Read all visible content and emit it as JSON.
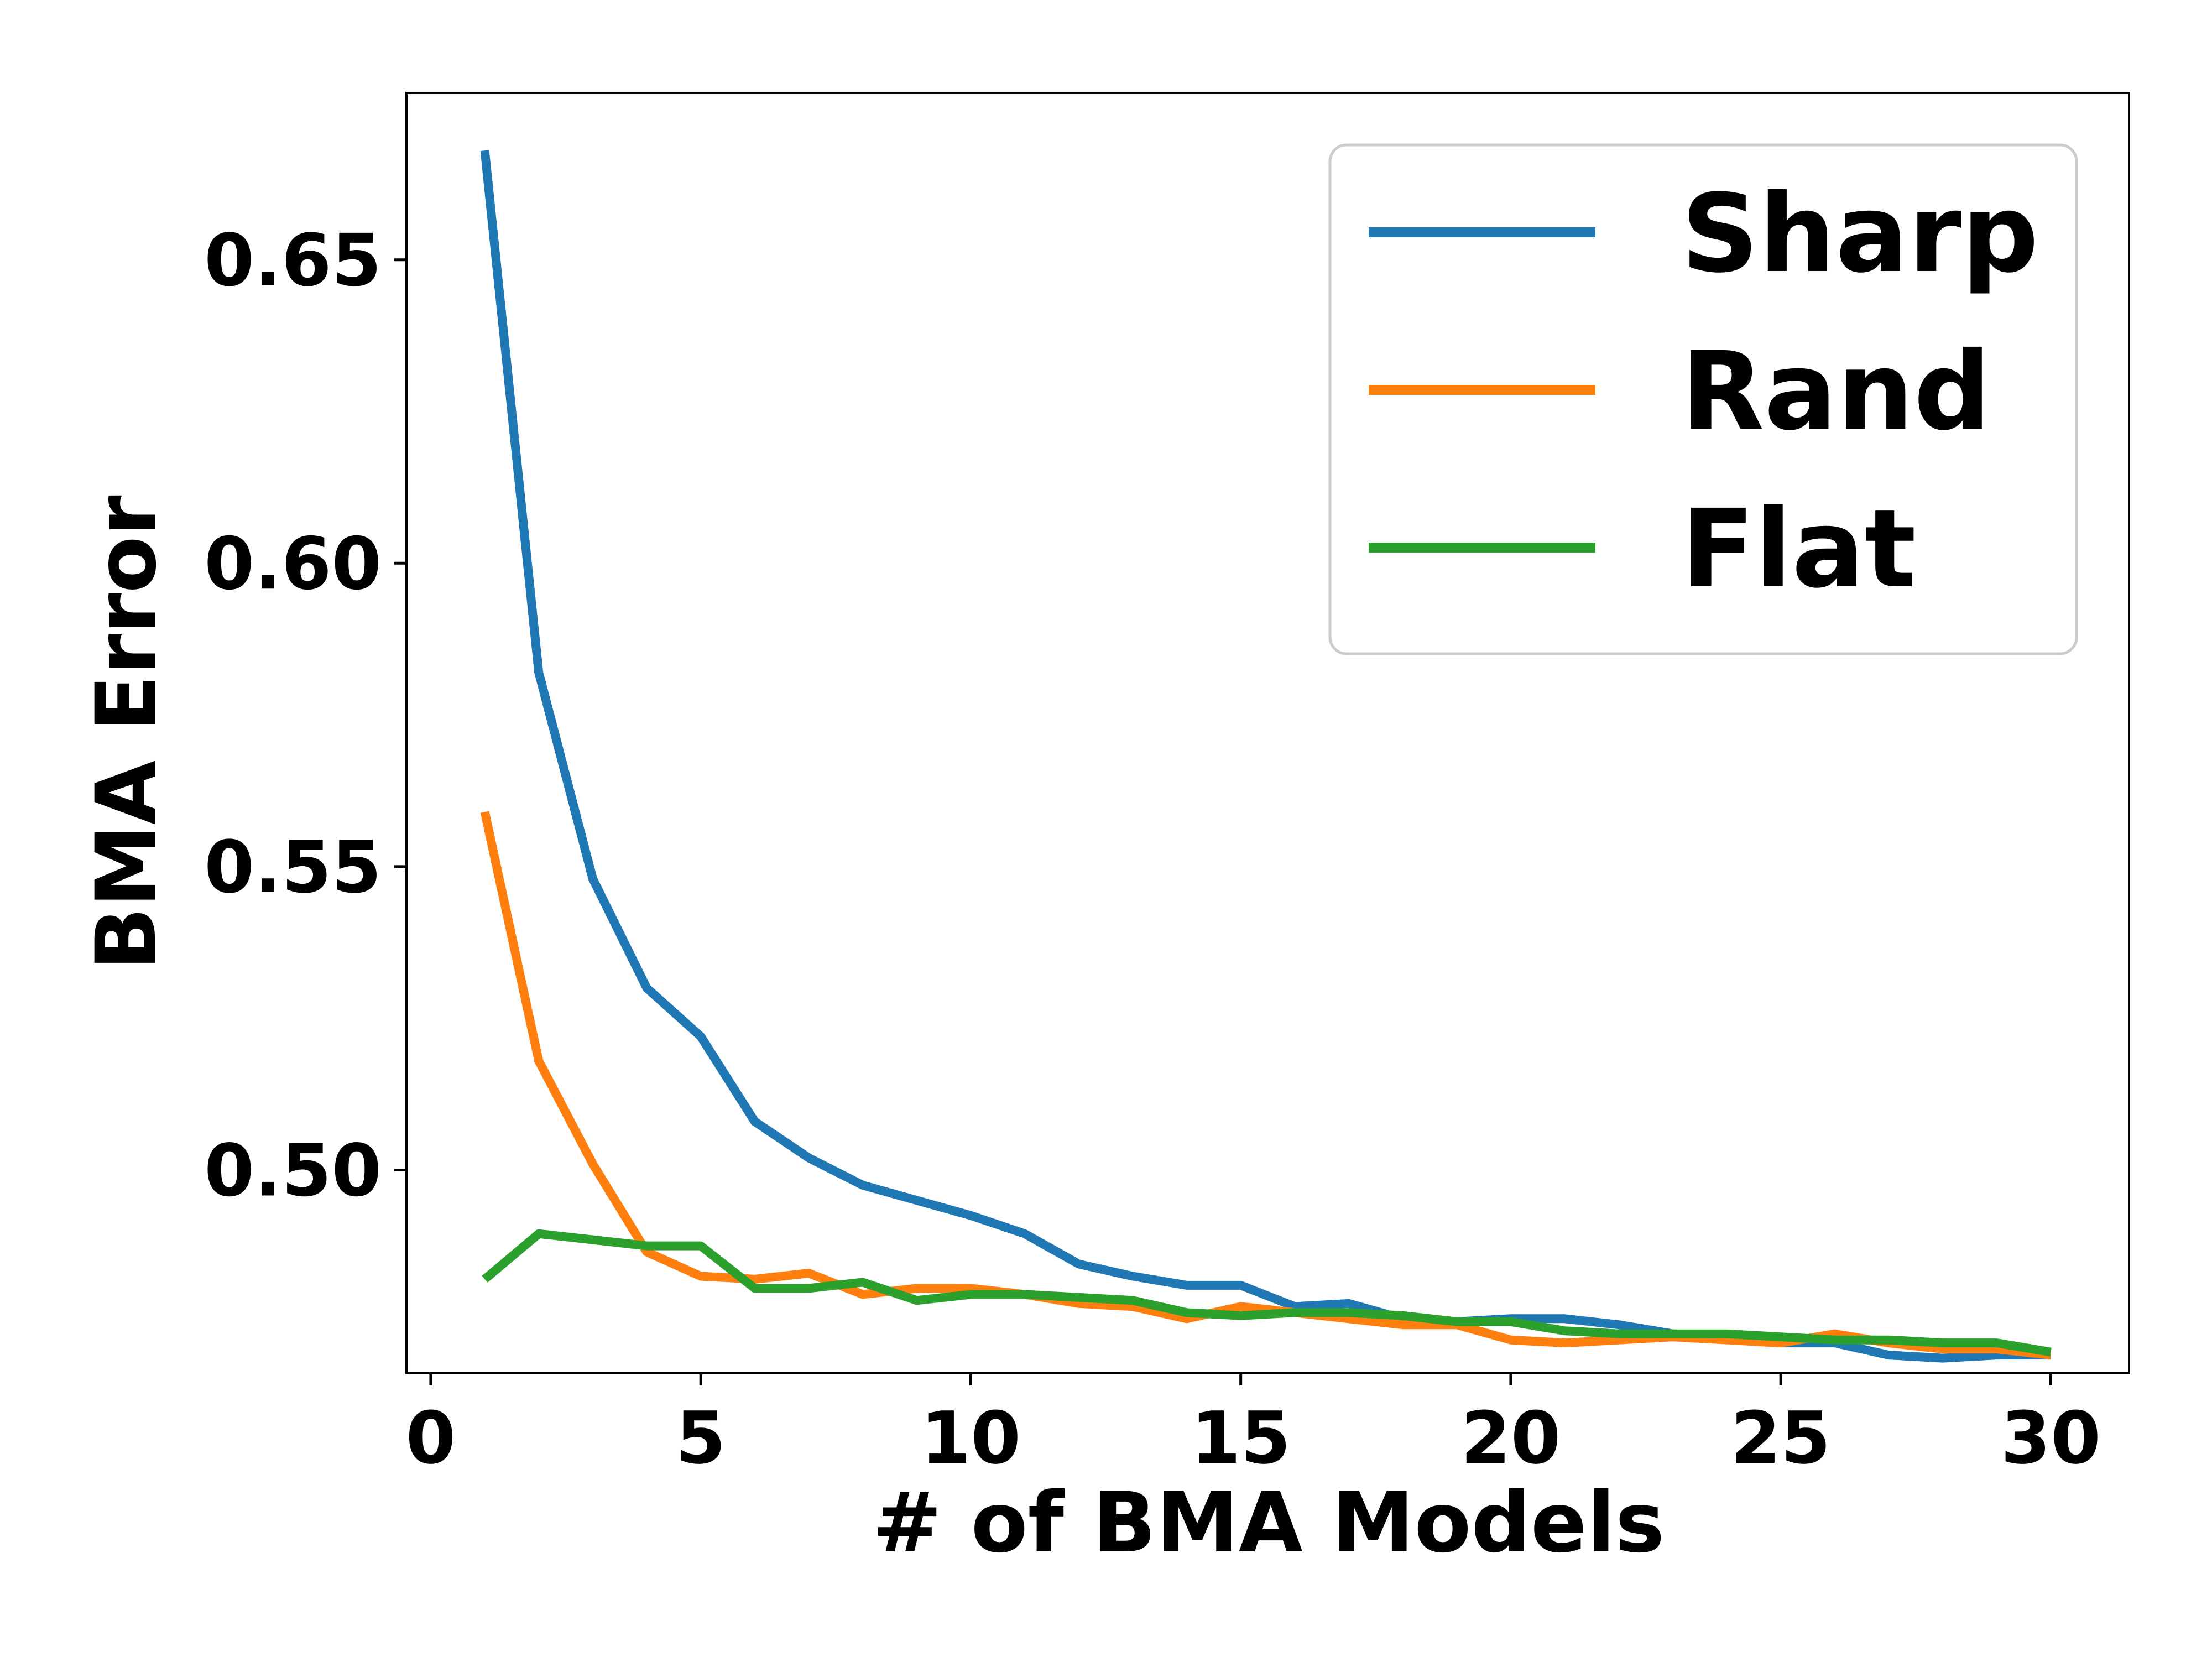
{
  "chart_data": {
    "type": "line",
    "title": "",
    "xlabel": "# of BMA Models",
    "ylabel": "BMA Error",
    "xlim": [
      -0.45,
      31.45
    ],
    "ylim": [
      0.4665,
      0.6775
    ],
    "xticks": [
      0,
      5,
      10,
      15,
      20,
      25,
      30
    ],
    "xtick_labels": [
      "0",
      "5",
      "10",
      "15",
      "20",
      "25",
      "30"
    ],
    "yticks": [
      0.5,
      0.55,
      0.6,
      0.65
    ],
    "ytick_labels": [
      "0.50",
      "0.55",
      "0.60",
      "0.65"
    ],
    "grid": false,
    "legend": {
      "position": "top-right",
      "entries": [
        "Sharp",
        "Rand",
        "Flat"
      ]
    },
    "x": [
      1,
      2,
      3,
      4,
      5,
      6,
      7,
      8,
      9,
      10,
      11,
      12,
      13,
      14,
      15,
      16,
      17,
      18,
      19,
      20,
      21,
      22,
      23,
      24,
      25,
      26,
      27,
      28,
      29,
      30
    ],
    "series": [
      {
        "name": "Sharp",
        "color": "#1f77b4",
        "values": [
          0.668,
          0.582,
          0.548,
          0.53,
          0.522,
          0.508,
          0.502,
          0.4975,
          0.495,
          0.4925,
          0.4895,
          0.4845,
          0.4825,
          0.481,
          0.481,
          0.4775,
          0.478,
          0.4755,
          0.475,
          0.4755,
          0.4755,
          0.4745,
          0.473,
          0.4725,
          0.4715,
          0.4715,
          0.4695,
          0.469,
          0.4695,
          0.4695
        ]
      },
      {
        "name": "Rand",
        "color": "#ff7f0e",
        "values": [
          0.559,
          0.518,
          0.501,
          0.4865,
          0.4825,
          0.482,
          0.483,
          0.4795,
          0.4805,
          0.4805,
          0.4795,
          0.478,
          0.4775,
          0.4755,
          0.4775,
          0.4765,
          0.4755,
          0.4745,
          0.4745,
          0.472,
          0.4715,
          0.472,
          0.4725,
          0.472,
          0.4715,
          0.473,
          0.4715,
          0.4705,
          0.4705,
          0.4695
        ]
      },
      {
        "name": "Flat",
        "color": "#2ca02c",
        "values": [
          0.482,
          0.4895,
          0.4885,
          0.4875,
          0.4875,
          0.4805,
          0.4805,
          0.4815,
          0.4785,
          0.4795,
          0.4795,
          0.479,
          0.4785,
          0.4765,
          0.476,
          0.4765,
          0.4765,
          0.476,
          0.475,
          0.475,
          0.4735,
          0.473,
          0.473,
          0.473,
          0.4725,
          0.472,
          0.472,
          0.4715,
          0.4715,
          0.47
        ]
      }
    ]
  }
}
